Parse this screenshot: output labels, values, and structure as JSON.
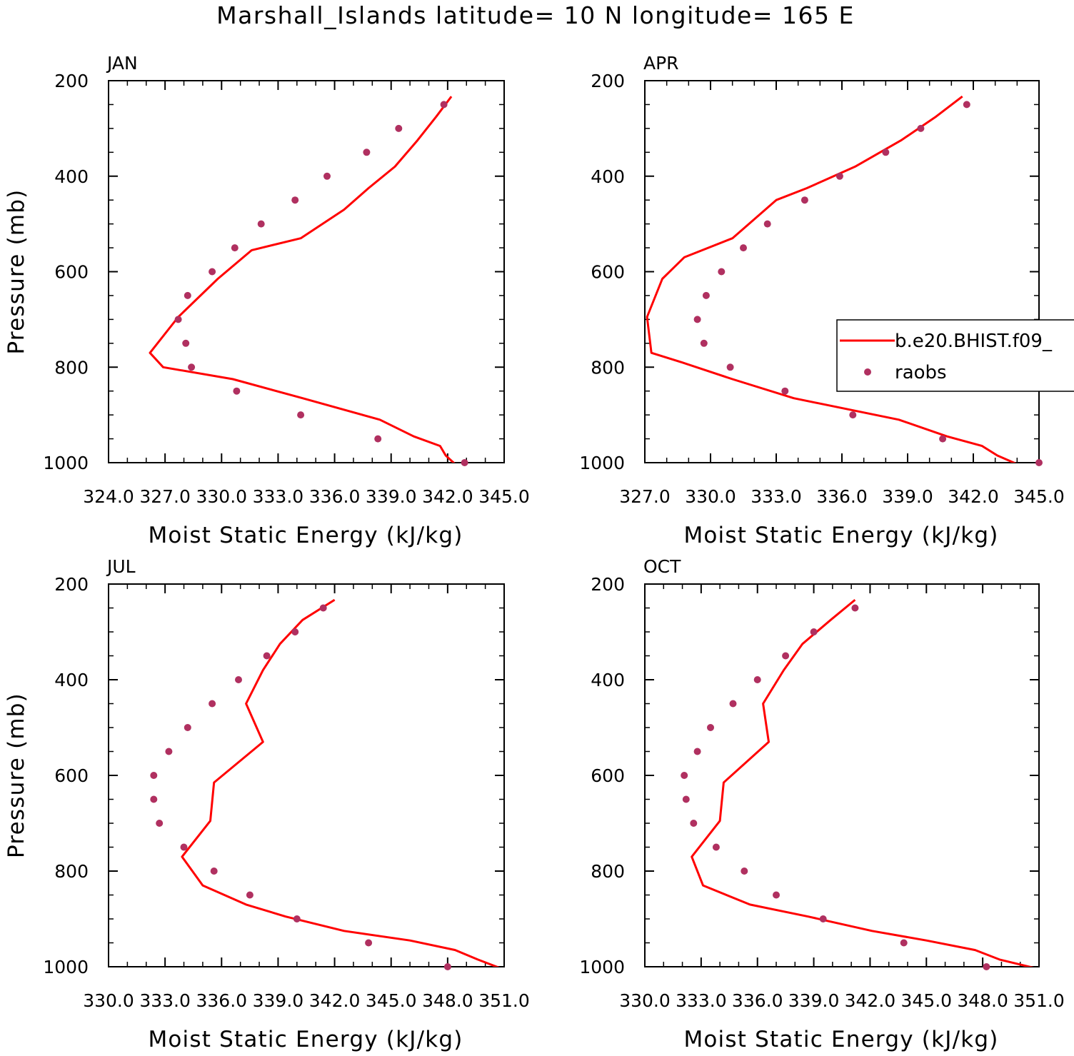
{
  "title": "Marshall_Islands  latitude= 10 N longitude= 165 E",
  "legend": {
    "line_label": "b.e20.BHIST.f09_",
    "dot_label": "raobs"
  },
  "colors": {
    "model_line": "#ff0000",
    "raobs_dots": "#b03060",
    "axes": "#000000"
  },
  "chart_data": [
    {
      "type": "line",
      "panel": "JAN",
      "xlabel": "Moist Static Energy (kJ/kg)",
      "ylabel": "Pressure (mb)",
      "xlim": [
        324.0,
        345.0
      ],
      "ylim": [
        200,
        1000
      ],
      "y_inverted": true,
      "x_ticks": [
        "324.0",
        "327.0",
        "330.0",
        "333.0",
        "336.0",
        "339.0",
        "342.0",
        "345.0"
      ],
      "y_ticks": [
        "200",
        "400",
        "600",
        "800",
        "1000"
      ],
      "series": [
        {
          "name": "b.e20.BHIST.f09_",
          "style": "line",
          "x": [
            342.2,
            341.4,
            340.4,
            339.2,
            337.8,
            336.5,
            334.2,
            331.6,
            329.8,
            327.7,
            326.2,
            326.9,
            330.6,
            334.3,
            338.4,
            340.2,
            341.6,
            341.9,
            342.4
          ],
          "y": [
            233,
            275,
            325,
            380,
            425,
            470,
            530,
            555,
            615,
            695,
            770,
            800,
            825,
            865,
            910,
            945,
            965,
            985,
            1003
          ]
        },
        {
          "name": "raobs",
          "style": "dots",
          "x": [
            341.8,
            339.4,
            337.7,
            335.6,
            333.9,
            332.1,
            330.7,
            329.5,
            328.2,
            327.7,
            328.1,
            328.4,
            330.8,
            334.2,
            338.3,
            342.9
          ],
          "y": [
            250,
            300,
            350,
            400,
            450,
            500,
            550,
            600,
            650,
            700,
            750,
            800,
            850,
            900,
            950,
            1000
          ]
        }
      ]
    },
    {
      "type": "line",
      "panel": "APR",
      "xlabel": "Moist Static Energy (kJ/kg)",
      "ylabel": "",
      "xlim": [
        327.0,
        345.0
      ],
      "ylim": [
        200,
        1000
      ],
      "y_inverted": true,
      "x_ticks": [
        "327.0",
        "330.0",
        "333.0",
        "336.0",
        "339.0",
        "342.0",
        "345.0"
      ],
      "y_ticks": [
        "200",
        "400",
        "600",
        "800",
        "1000"
      ],
      "series": [
        {
          "name": "b.e20.BHIST.f09_",
          "style": "line",
          "x": [
            341.5,
            340.3,
            338.7,
            336.6,
            334.4,
            333.0,
            331.0,
            328.8,
            327.8,
            327.1,
            327.3,
            328.7,
            331.0,
            333.8,
            338.6,
            340.8,
            342.4,
            343.1,
            344.0
          ],
          "y": [
            233,
            275,
            325,
            380,
            425,
            450,
            530,
            570,
            615,
            695,
            770,
            790,
            825,
            865,
            910,
            945,
            965,
            985,
            1003
          ]
        },
        {
          "name": "raobs",
          "style": "dots",
          "x": [
            341.7,
            339.6,
            338.0,
            335.9,
            334.3,
            332.6,
            331.5,
            330.5,
            329.8,
            329.4,
            329.7,
            330.9,
            333.4,
            336.5,
            340.6,
            345.0
          ],
          "y": [
            250,
            300,
            350,
            400,
            450,
            500,
            550,
            600,
            650,
            700,
            750,
            800,
            850,
            900,
            950,
            1000
          ]
        }
      ]
    },
    {
      "type": "line",
      "panel": "JUL",
      "xlabel": "Moist Static Energy (kJ/kg)",
      "ylabel": "Pressure (mb)",
      "xlim": [
        330.0,
        351.0
      ],
      "ylim": [
        200,
        1000
      ],
      "y_inverted": true,
      "x_ticks": [
        "330.0",
        "333.0",
        "336.0",
        "339.0",
        "342.0",
        "345.0",
        "348.0",
        "351.0"
      ],
      "y_ticks": [
        "200",
        "400",
        "600",
        "800",
        "1000"
      ],
      "series": [
        {
          "name": "b.e20.BHIST.f09_",
          "style": "line",
          "x": [
            342.0,
            340.3,
            339.1,
            338.2,
            337.3,
            338.2,
            335.6,
            335.4,
            333.9,
            335.0,
            337.3,
            339.4,
            342.5,
            346.0,
            348.4,
            349.6,
            350.8
          ],
          "y": [
            233,
            275,
            325,
            380,
            450,
            530,
            615,
            695,
            770,
            830,
            870,
            895,
            925,
            945,
            965,
            985,
            1003
          ]
        },
        {
          "name": "raobs",
          "style": "dots",
          "x": [
            341.4,
            339.9,
            338.4,
            336.9,
            335.5,
            334.2,
            333.2,
            332.4,
            332.4,
            332.7,
            334.0,
            335.6,
            337.5,
            340.0,
            343.8,
            348.0
          ],
          "y": [
            250,
            300,
            350,
            400,
            450,
            500,
            550,
            600,
            650,
            700,
            750,
            800,
            850,
            900,
            950,
            1000
          ]
        }
      ]
    },
    {
      "type": "line",
      "panel": "OCT",
      "xlabel": "Moist Static Energy (kJ/kg)",
      "ylabel": "",
      "xlim": [
        330.0,
        351.0
      ],
      "ylim": [
        200,
        1000
      ],
      "y_inverted": true,
      "x_ticks": [
        "330.0",
        "333.0",
        "336.0",
        "339.0",
        "342.0",
        "345.0",
        "348.0",
        "351.0"
      ],
      "y_ticks": [
        "200",
        "400",
        "600",
        "800",
        "1000"
      ],
      "series": [
        {
          "name": "b.e20.BHIST.f09_",
          "style": "line",
          "x": [
            341.2,
            339.9,
            338.4,
            337.4,
            336.3,
            336.6,
            334.2,
            334.0,
            332.5,
            333.1,
            335.6,
            338.7,
            342.1,
            345.0,
            347.6,
            348.9,
            350.8
          ],
          "y": [
            233,
            275,
            325,
            380,
            450,
            530,
            615,
            695,
            770,
            830,
            870,
            895,
            925,
            945,
            965,
            985,
            1003
          ]
        },
        {
          "name": "raobs",
          "style": "dots",
          "x": [
            341.2,
            339.0,
            337.5,
            336.0,
            334.7,
            333.5,
            332.8,
            332.1,
            332.2,
            332.6,
            333.8,
            335.3,
            337.0,
            339.5,
            343.8,
            348.2
          ],
          "y": [
            250,
            300,
            350,
            400,
            450,
            500,
            550,
            600,
            650,
            700,
            750,
            800,
            850,
            900,
            950,
            1000
          ]
        }
      ]
    }
  ]
}
